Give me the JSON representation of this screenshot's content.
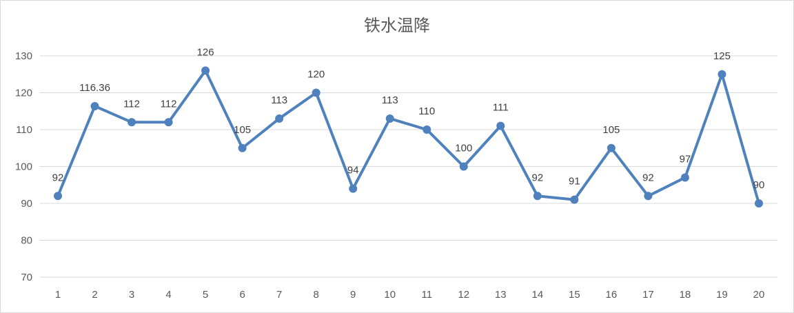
{
  "chart_data": {
    "type": "line",
    "title": "铁水温降",
    "xlabel": "",
    "ylabel": "",
    "ylim": [
      70,
      130
    ],
    "y_ticks": [
      70,
      80,
      90,
      100,
      110,
      120,
      130
    ],
    "x": [
      "1",
      "2",
      "3",
      "4",
      "5",
      "6",
      "7",
      "8",
      "9",
      "10",
      "11",
      "12",
      "13",
      "14",
      "15",
      "16",
      "17",
      "18",
      "19",
      "20"
    ],
    "grid": true,
    "legend": "none",
    "series": [
      {
        "values": [
          92,
          116.36,
          112,
          112,
          126,
          105,
          113,
          120,
          94,
          113,
          110,
          100,
          111,
          92,
          91,
          105,
          92,
          97,
          125,
          90
        ],
        "labels": [
          "92",
          "116.36",
          "112",
          "112",
          "126",
          "105",
          "113",
          "120",
          "94",
          "113",
          "110",
          "100",
          "111",
          "92",
          "91",
          "105",
          "92",
          "97",
          "125",
          "90"
        ],
        "color": "#4f81bd"
      }
    ]
  }
}
